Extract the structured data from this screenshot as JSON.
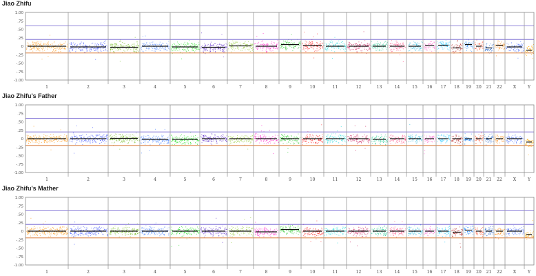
{
  "chart_data": [
    {
      "type": "scatter",
      "title": "Jiao Zhifu",
      "ylim": [
        -1.0,
        1.0
      ],
      "yticks": [
        "1.00",
        ".75",
        ".50",
        ".25",
        "0",
        "-.25",
        "-.50",
        "-.75",
        "-1.00"
      ],
      "categories": [
        "1",
        "2",
        "3",
        "4",
        "5",
        "6",
        "7",
        "8",
        "9",
        "10",
        "11",
        "12",
        "13",
        "14",
        "15",
        "16",
        "17",
        "18",
        "19",
        "20",
        "21",
        "22",
        "X",
        "Y"
      ],
      "threshold_lines": [
        {
          "y": 0.6,
          "color": "#6a5acd"
        },
        {
          "y": 0.2,
          "color": "#6a5acd"
        },
        {
          "y": -0.2,
          "color": "#d2691e"
        }
      ],
      "spread": 0.09,
      "median_lines": [
        0.0,
        -0.02,
        -0.03,
        0.0,
        -0.02,
        -0.03,
        0.01,
        0.0,
        0.05,
        0.02,
        0.0,
        0.0,
        0.0,
        0.0,
        0.0,
        0.02,
        0.03,
        -0.05,
        0.05,
        0.0,
        -0.05,
        0.03,
        -0.02,
        -0.12
      ]
    },
    {
      "type": "scatter",
      "title": "Jiao Zhifu's Father",
      "ylim": [
        -1.0,
        1.0
      ],
      "yticks": [
        "1.00",
        ".75",
        ".50",
        ".25",
        "0",
        "-.25",
        "-.50",
        "-.75",
        "-1.00"
      ],
      "categories": [
        "1",
        "2",
        "3",
        "4",
        "5",
        "6",
        "7",
        "8",
        "9",
        "10",
        "11",
        "12",
        "13",
        "14",
        "15",
        "16",
        "17",
        "18",
        "19",
        "20",
        "21",
        "22",
        "X",
        "Y"
      ],
      "threshold_lines": [
        {
          "y": 0.6,
          "color": "#6a5acd"
        },
        {
          "y": 0.2,
          "color": "#6a5acd"
        },
        {
          "y": -0.2,
          "color": "#d2691e"
        }
      ],
      "spread": 0.08,
      "median_lines": [
        0.0,
        0.0,
        0.01,
        -0.02,
        -0.02,
        0.0,
        0.0,
        0.0,
        0.0,
        0.0,
        0.0,
        0.0,
        -0.02,
        0.0,
        0.0,
        0.0,
        0.0,
        0.0,
        0.0,
        0.0,
        0.0,
        0.0,
        0.0,
        -0.1
      ]
    },
    {
      "type": "scatter",
      "title": "Jiao Zhifu's Mather",
      "ylim": [
        -1.0,
        1.0
      ],
      "yticks": [
        "1.00",
        ".75",
        ".50",
        ".25",
        "0",
        "-.25",
        "-.50",
        "-.75",
        "-1.00"
      ],
      "categories": [
        "1",
        "2",
        "3",
        "4",
        "5",
        "6",
        "7",
        "8",
        "9",
        "10",
        "11",
        "12",
        "13",
        "14",
        "15",
        "16",
        "17",
        "18",
        "19",
        "20",
        "21",
        "22",
        "X",
        "Y"
      ],
      "threshold_lines": [
        {
          "y": 0.6,
          "color": "#6a5acd"
        },
        {
          "y": 0.2,
          "color": "#6a5acd"
        },
        {
          "y": -0.2,
          "color": "#d2691e"
        }
      ],
      "spread": 0.08,
      "median_lines": [
        0.0,
        0.0,
        0.0,
        0.0,
        0.0,
        0.0,
        0.0,
        -0.02,
        0.05,
        0.0,
        0.0,
        0.0,
        0.0,
        0.0,
        0.0,
        0.0,
        0.0,
        -0.03,
        0.03,
        0.0,
        0.0,
        0.0,
        0.0,
        -0.1
      ]
    }
  ],
  "colors": {
    "series": [
      "#ff9a1a",
      "#4a5cff",
      "#7cbf2e",
      "#5a8cff",
      "#33e033",
      "#6a3bd0",
      "#9fd04a",
      "#ff33cc",
      "#33cc33",
      "#ff3333",
      "#33dddd",
      "#d0306a",
      "#33cc99",
      "#ff5588",
      "#33bbdd",
      "#ff66cc",
      "#33ccff",
      "#b82a2a",
      "#2a8cff",
      "#ff5533",
      "#2a6ad0",
      "#ff8c1a",
      "#5577ff",
      "#ffaa00"
    ],
    "frame": "#888888",
    "divider": "#9a9a9a",
    "median": "#111111"
  }
}
